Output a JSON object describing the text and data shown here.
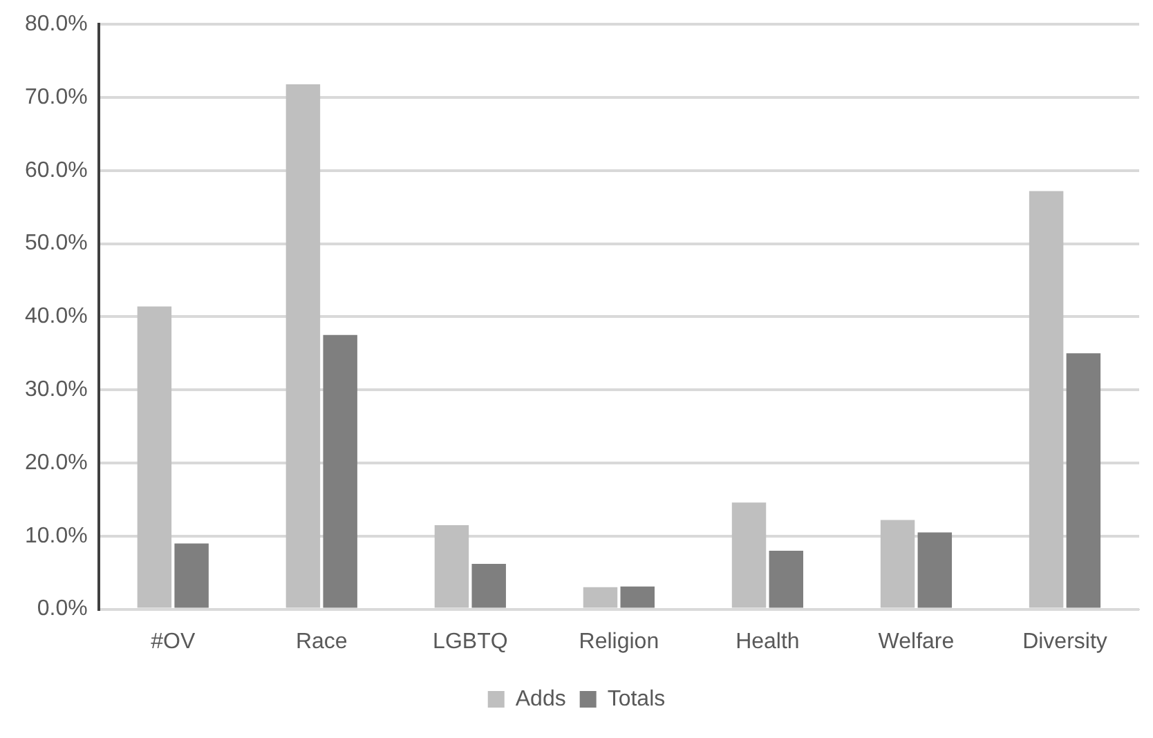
{
  "chart_data": {
    "type": "bar",
    "categories": [
      "#OV",
      "Race",
      "LGBTQ",
      "Religion",
      "Health",
      "Welfare",
      "Diversity"
    ],
    "series": [
      {
        "name": "Adds",
        "color": "#bfbfbf",
        "values": [
          41.4,
          71.8,
          11.5,
          3.0,
          14.6,
          12.2,
          57.2
        ]
      },
      {
        "name": "Totals",
        "color": "#7f7f7f",
        "values": [
          9.0,
          37.5,
          6.2,
          3.1,
          8.0,
          10.5,
          35.0
        ]
      }
    ],
    "ylim": [
      0,
      80
    ],
    "yticks": [
      {
        "value": 0,
        "label": "0.0%"
      },
      {
        "value": 10,
        "label": "10.0%"
      },
      {
        "value": 20,
        "label": "20.0%"
      },
      {
        "value": 30,
        "label": "30.0%"
      },
      {
        "value": 40,
        "label": "40.0%"
      },
      {
        "value": 50,
        "label": "50.0%"
      },
      {
        "value": 60,
        "label": "60.0%"
      },
      {
        "value": 70,
        "label": "70.0%"
      },
      {
        "value": 80,
        "label": "80.0%"
      }
    ],
    "grid": "y",
    "legend": "bottom"
  }
}
